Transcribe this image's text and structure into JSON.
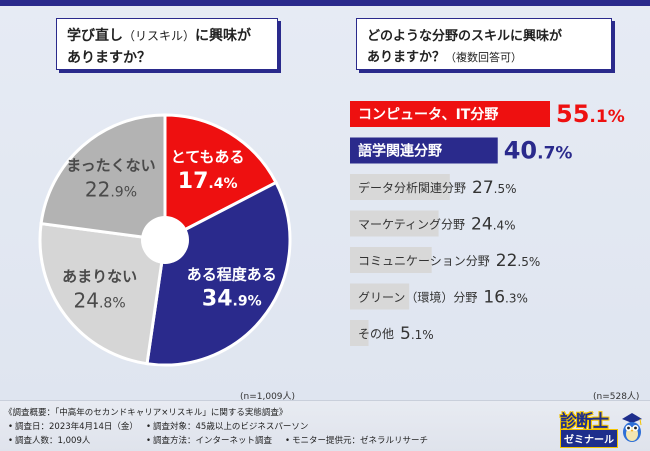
{
  "colors": {
    "accent_red": "#ee1010",
    "accent_navy": "#2a2a8c",
    "neutral_gray": "#b8b8b8",
    "neutral_light": "#d8d8d8"
  },
  "left_question": {
    "line1_prefix": "学び直し",
    "line1_paren": "（リスキル）",
    "line1_suffix": "に興味が",
    "line2": "ありますか？"
  },
  "right_question": {
    "line1": "どのような分野のスキルに興味が",
    "line2_main": "ありますか？",
    "line2_paren": "（複数回答可）"
  },
  "chart_data": [
    {
      "type": "pie",
      "categories": [
        "とてもある",
        "ある程度ある",
        "あまりない",
        "まったくない"
      ],
      "values": [
        17.4,
        34.9,
        24.8,
        22.9
      ],
      "unit": "%",
      "colors": [
        "#ee1010",
        "#2a2a8c",
        "#d6d6d6",
        "#b3b3b3"
      ],
      "note": "(n=1,009人)"
    },
    {
      "type": "bar",
      "orientation": "horizontal",
      "categories": [
        "コンピュータ、IT分野",
        "語学関連分野",
        "データ分析関連分野",
        "マーケティング分野",
        "コミュニケーション分野",
        "グリーン（環境）分野",
        "その他"
      ],
      "values": [
        55.1,
        40.7,
        27.5,
        24.4,
        22.5,
        16.3,
        5.1
      ],
      "unit": "%",
      "colors": [
        "#ee1010",
        "#2a2a8c",
        "#d8d8d8",
        "#d8d8d8",
        "#d8d8d8",
        "#d8d8d8",
        "#d8d8d8"
      ],
      "note": "(n=528人)"
    }
  ],
  "footer": {
    "title": "《調査概要：「中高年のセカンドキャリア×リスキル」に関する実態調査》",
    "date": "調査日：2023年4月14日（金）",
    "count": "調査人数：1,009人",
    "target": "調査対象：45歳以上のビジネスパーソン",
    "method": "調査方法：インターネット調査",
    "provider": "モニター提供元：ゼネラルリサーチ"
  },
  "logo": {
    "line1": "診断士",
    "line2": "ゼミナール"
  }
}
